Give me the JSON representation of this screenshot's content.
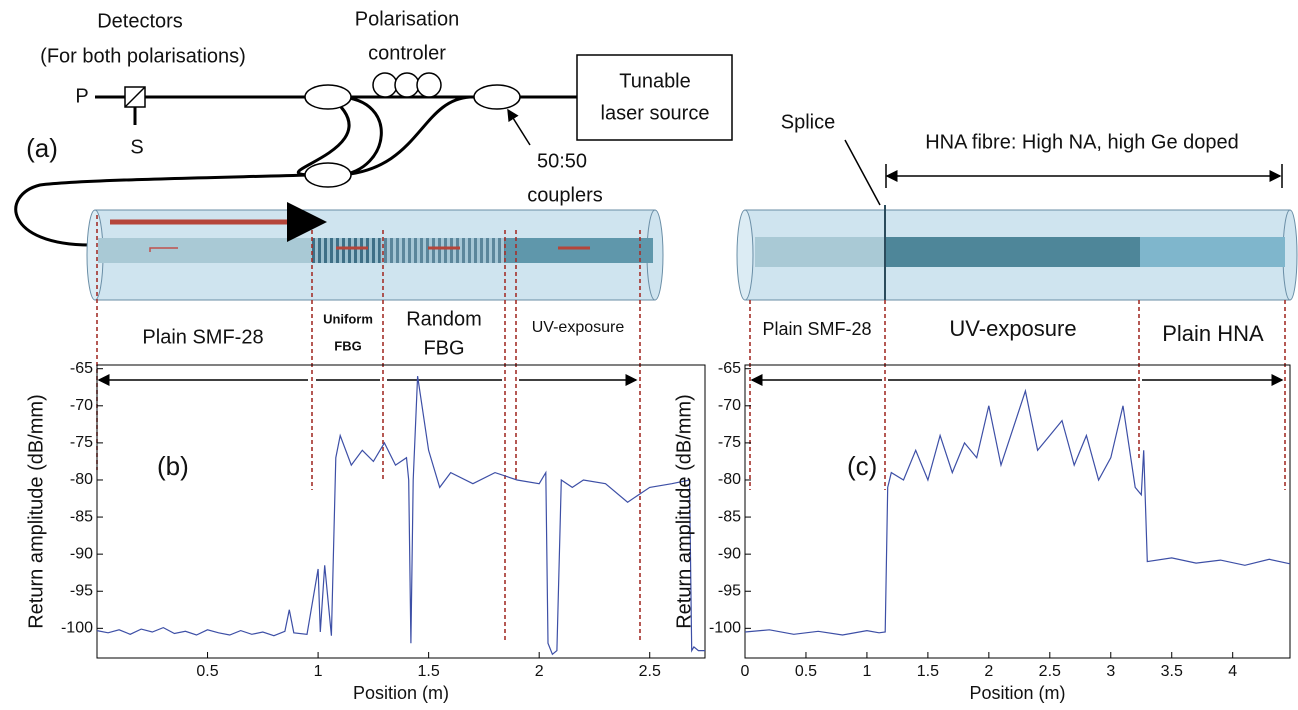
{
  "diagram": {
    "panel_label": "(a)",
    "detectors": [
      "Detectors",
      "(For both polarisations)"
    ],
    "p_label": "P",
    "s_label": "S",
    "controller": [
      "Polarisation",
      "controler"
    ],
    "laser": [
      "Tunable",
      "laser source"
    ],
    "couplers": [
      "50:50",
      "couplers"
    ],
    "sections_a": {
      "plain": "Plain SMF-28",
      "uniform": [
        "Uniform",
        "FBG"
      ],
      "random": [
        "Random",
        "FBG"
      ],
      "uv": "UV-exposure"
    },
    "splice": "Splice",
    "hna": "HNA fibre: High NA, high Ge doped",
    "sections_c": {
      "plain": "Plain SMF-28",
      "uv": "UV-exposure",
      "hna": "Plain HNA"
    }
  },
  "chart_data": [
    {
      "type": "line",
      "panel_label": "(b)",
      "xlabel": "Position (m)",
      "ylabel": "Return amplitude (dB/mm)",
      "xlim": [
        0,
        2.75
      ],
      "ylim": [
        -104,
        -64.5
      ],
      "xticks": [
        0.5,
        1,
        1.5,
        2,
        2.5
      ],
      "yticks": [
        -65,
        -70,
        -75,
        -80,
        -85,
        -90,
        -95,
        -100
      ],
      "x": [
        0,
        0.05,
        0.1,
        0.15,
        0.2,
        0.25,
        0.3,
        0.35,
        0.4,
        0.45,
        0.5,
        0.55,
        0.6,
        0.65,
        0.7,
        0.75,
        0.8,
        0.85,
        0.87,
        0.89,
        0.95,
        1.0,
        1.01,
        1.03,
        1.06,
        1.08,
        1.1,
        1.15,
        1.2,
        1.25,
        1.3,
        1.35,
        1.4,
        1.41,
        1.42,
        1.43,
        1.45,
        1.5,
        1.55,
        1.6,
        1.7,
        1.8,
        1.9,
        2.0,
        2.03,
        2.04,
        2.06,
        2.08,
        2.1,
        2.15,
        2.2,
        2.3,
        2.4,
        2.5,
        2.6,
        2.68,
        2.69,
        2.7,
        2.72,
        2.75
      ],
      "series": [
        {
          "color": "#3d4fa6",
          "values": [
            -100.3,
            -100.6,
            -100.2,
            -100.8,
            -100.1,
            -100.5,
            -99.9,
            -100.7,
            -100.4,
            -100.9,
            -100.2,
            -100.6,
            -100.9,
            -100.3,
            -100.8,
            -100.5,
            -101.0,
            -100.4,
            -97.5,
            -100.6,
            -100.8,
            -92,
            -100.5,
            -91.5,
            -101,
            -77,
            -74,
            -78,
            -76,
            -77.5,
            -75,
            -78,
            -77,
            -80,
            -102,
            -80,
            -66,
            -76,
            -81,
            -79,
            -80.5,
            -79,
            -80,
            -80.5,
            -79,
            -102,
            -103.5,
            -103,
            -80,
            -81,
            -80,
            -80.5,
            -83,
            -81,
            -80.5,
            -80,
            -103,
            -102.5,
            -103,
            -103
          ]
        }
      ]
    },
    {
      "type": "line",
      "panel_label": "(c)",
      "xlabel": "Position (m)",
      "ylabel": "Return amplitude (dB/mm)",
      "xlim": [
        0,
        4.47
      ],
      "ylim": [
        -104,
        -64.5
      ],
      "xticks": [
        0,
        0.5,
        1,
        1.5,
        2,
        2.5,
        3,
        3.5,
        4
      ],
      "yticks": [
        -65,
        -70,
        -75,
        -80,
        -85,
        -90,
        -95,
        -100
      ],
      "x": [
        0,
        0.2,
        0.4,
        0.6,
        0.8,
        1.0,
        1.1,
        1.15,
        1.17,
        1.2,
        1.3,
        1.4,
        1.5,
        1.6,
        1.7,
        1.8,
        1.9,
        2.0,
        2.1,
        2.2,
        2.3,
        2.4,
        2.5,
        2.6,
        2.7,
        2.8,
        2.9,
        3.0,
        3.1,
        3.2,
        3.25,
        3.27,
        3.3,
        3.5,
        3.7,
        3.9,
        4.1,
        4.3,
        4.47
      ],
      "series": [
        {
          "color": "#3d4fa6",
          "values": [
            -100.5,
            -100.2,
            -100.8,
            -100.4,
            -100.9,
            -100.3,
            -100.6,
            -100.5,
            -81,
            -79,
            -80,
            -76,
            -80,
            -74,
            -79,
            -75,
            -77,
            -70,
            -78,
            -73,
            -68,
            -76,
            -74,
            -72,
            -78,
            -74,
            -80,
            -77,
            -70,
            -81,
            -82,
            -76,
            -91,
            -90.5,
            -91.2,
            -90.8,
            -91.5,
            -90.7,
            -91.3
          ]
        }
      ]
    }
  ]
}
